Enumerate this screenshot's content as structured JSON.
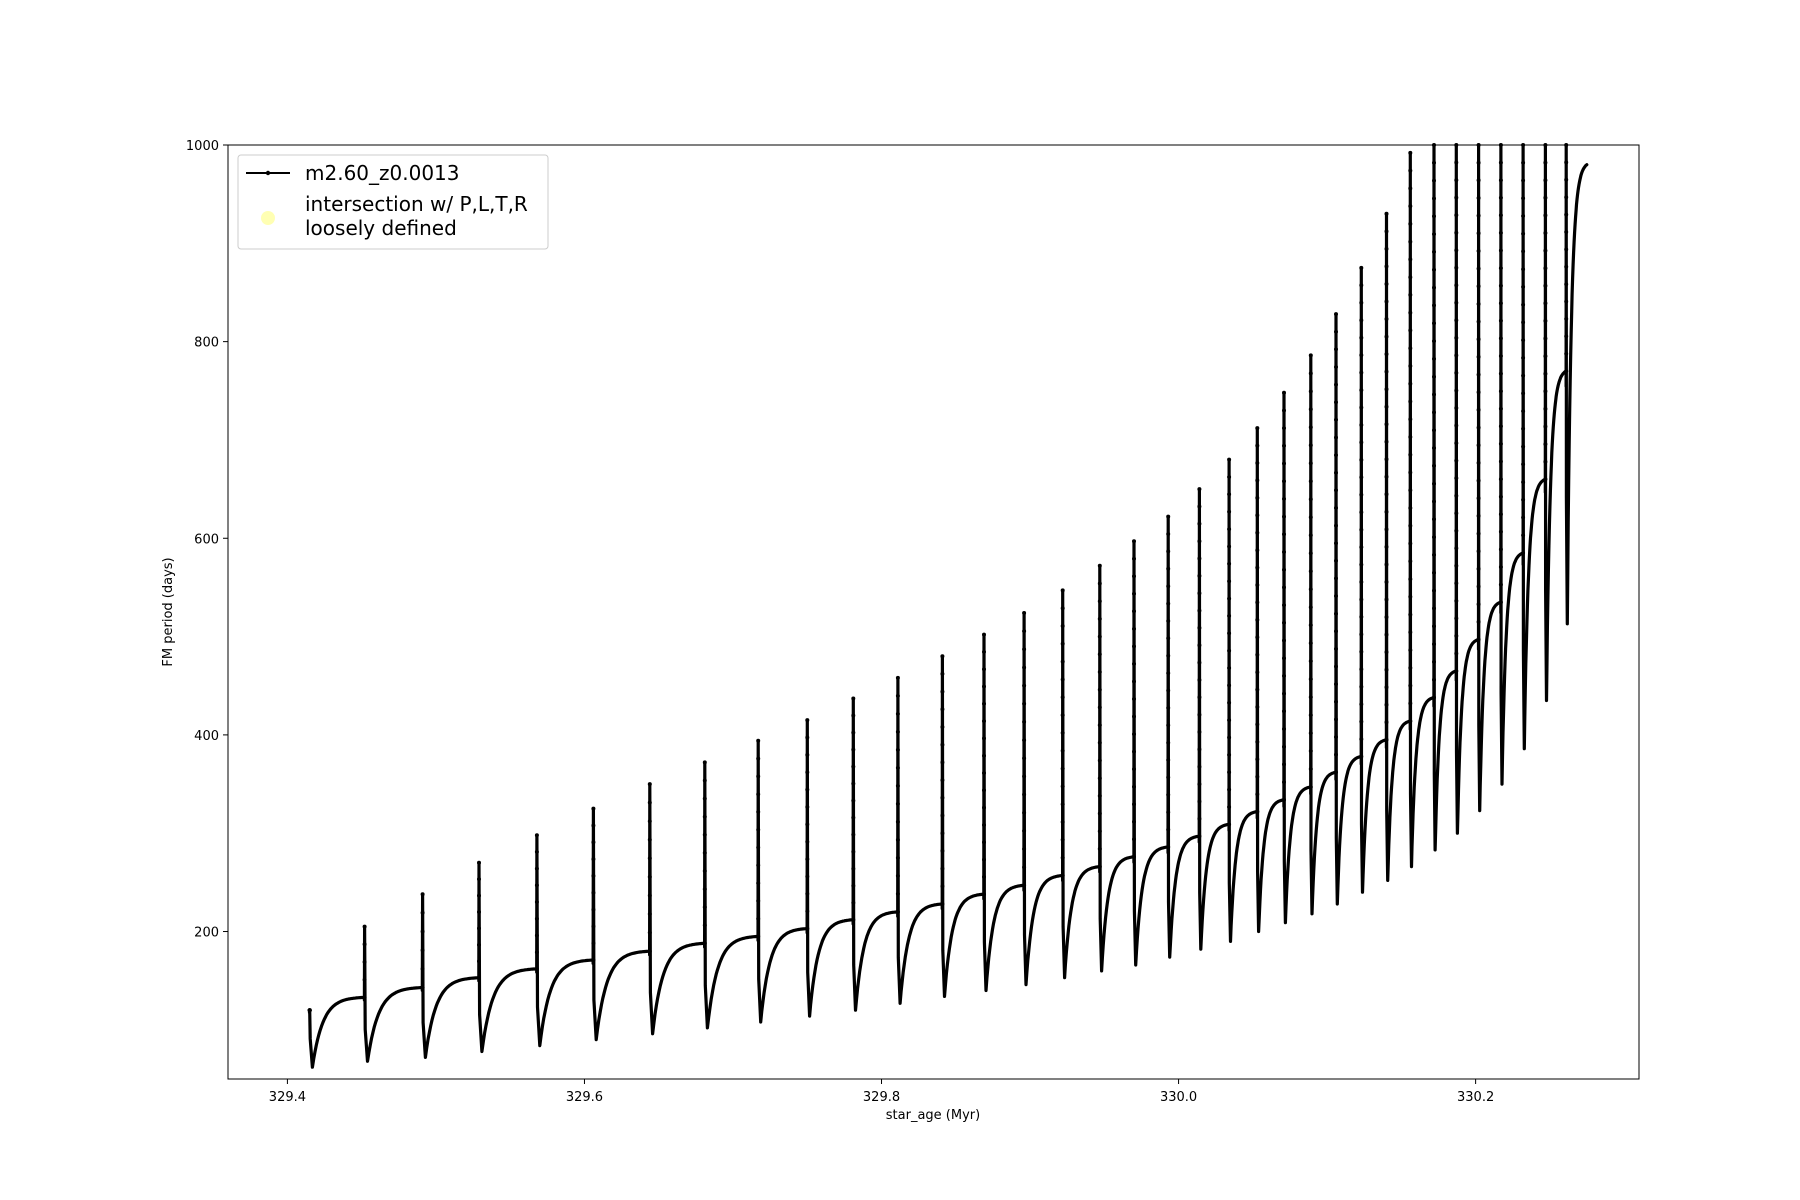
{
  "chart_data": {
    "type": "line",
    "xlabel": "star_age (Myr)",
    "ylabel": "FM period (days)",
    "xlim": [
      329.36,
      330.31
    ],
    "ylim": [
      50,
      1000
    ],
    "xticks": [
      329.4,
      329.6,
      329.8,
      330.0,
      330.2
    ],
    "xtick_labels": [
      "329.4",
      "329.6",
      "329.8",
      "330.0",
      "330.2"
    ],
    "yticks": [
      200,
      400,
      600,
      800,
      1000
    ],
    "ytick_labels": [
      "200",
      "400",
      "600",
      "800",
      "1000"
    ],
    "grid": false,
    "legend_position": "top-left",
    "legend": [
      {
        "label": "m2.60_z0.0013",
        "marker": "line-with-dots",
        "color": "#000000"
      },
      {
        "label": "intersection w/ P,L,T,R loosely defined",
        "label_lines": [
          "intersection w/ P,L,T,R",
          "loosely defined"
        ],
        "marker": "circle",
        "color": "#ffffb3"
      }
    ],
    "series": [
      {
        "name": "m2.60_z0.0013",
        "color": "#000000",
        "pulses": [
          {
            "x": 329.415,
            "peak": 120,
            "min": 62,
            "rise": 120
          },
          {
            "x": 329.452,
            "peak": 205,
            "min": 68,
            "rise": 133
          },
          {
            "x": 329.491,
            "peak": 238,
            "min": 72,
            "rise": 143
          },
          {
            "x": 329.529,
            "peak": 270,
            "min": 78,
            "rise": 153
          },
          {
            "x": 329.568,
            "peak": 298,
            "min": 84,
            "rise": 162
          },
          {
            "x": 329.606,
            "peak": 325,
            "min": 90,
            "rise": 171
          },
          {
            "x": 329.644,
            "peak": 350,
            "min": 96,
            "rise": 180
          },
          {
            "x": 329.681,
            "peak": 372,
            "min": 102,
            "rise": 188
          },
          {
            "x": 329.717,
            "peak": 394,
            "min": 108,
            "rise": 195
          },
          {
            "x": 329.75,
            "peak": 415,
            "min": 114,
            "rise": 203
          },
          {
            "x": 329.781,
            "peak": 437,
            "min": 120,
            "rise": 212
          },
          {
            "x": 329.811,
            "peak": 458,
            "min": 127,
            "rise": 220
          },
          {
            "x": 329.841,
            "peak": 480,
            "min": 134,
            "rise": 228
          },
          {
            "x": 329.869,
            "peak": 502,
            "min": 140,
            "rise": 238
          },
          {
            "x": 329.896,
            "peak": 524,
            "min": 146,
            "rise": 247
          },
          {
            "x": 329.922,
            "peak": 547,
            "min": 153,
            "rise": 257
          },
          {
            "x": 329.947,
            "peak": 572,
            "min": 160,
            "rise": 266
          },
          {
            "x": 329.97,
            "peak": 597,
            "min": 166,
            "rise": 276
          },
          {
            "x": 329.993,
            "peak": 622,
            "min": 174,
            "rise": 286
          },
          {
            "x": 330.014,
            "peak": 650,
            "min": 182,
            "rise": 297
          },
          {
            "x": 330.034,
            "peak": 680,
            "min": 190,
            "rise": 309
          },
          {
            "x": 330.053,
            "peak": 712,
            "min": 200,
            "rise": 322
          },
          {
            "x": 330.071,
            "peak": 748,
            "min": 209,
            "rise": 334
          },
          {
            "x": 330.089,
            "peak": 786,
            "min": 218,
            "rise": 347
          },
          {
            "x": 330.106,
            "peak": 828,
            "min": 228,
            "rise": 362
          },
          {
            "x": 330.123,
            "peak": 875,
            "min": 240,
            "rise": 378
          },
          {
            "x": 330.14,
            "peak": 930,
            "min": 252,
            "rise": 395
          },
          {
            "x": 330.156,
            "peak": 992,
            "min": 266,
            "rise": 414
          },
          {
            "x": 330.172,
            "peak": 1000,
            "min": 283,
            "rise": 438
          },
          {
            "x": 330.187,
            "peak": 1000,
            "min": 300,
            "rise": 465
          },
          {
            "x": 330.202,
            "peak": 1000,
            "min": 323,
            "rise": 497
          },
          {
            "x": 330.217,
            "peak": 1000,
            "min": 350,
            "rise": 535
          },
          {
            "x": 330.232,
            "peak": 1000,
            "min": 386,
            "rise": 585
          },
          {
            "x": 330.247,
            "peak": 1000,
            "min": 435,
            "rise": 660
          },
          {
            "x": 330.261,
            "peak": 1000,
            "min": 513,
            "rise": 770
          }
        ],
        "end_x": 330.275,
        "end_y": 980
      }
    ]
  }
}
